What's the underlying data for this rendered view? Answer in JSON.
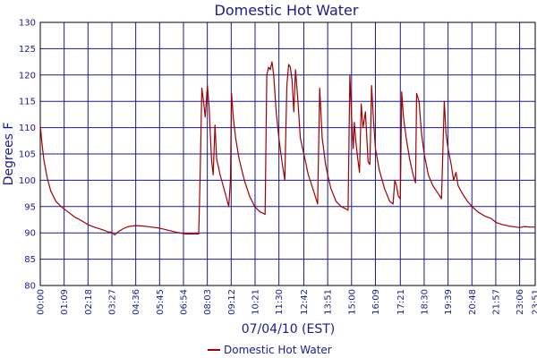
{
  "chart_data": {
    "type": "line",
    "title": "Domestic Hot Water",
    "xlabel": "07/04/10 (EST)",
    "ylabel": "Degrees F",
    "ylim": [
      80,
      130
    ],
    "yticks": [
      80,
      85,
      90,
      95,
      100,
      105,
      110,
      115,
      120,
      125,
      130
    ],
    "xticks": [
      "00:00",
      "01:09",
      "02:18",
      "03:27",
      "04:36",
      "05:45",
      "06:54",
      "08:03",
      "09:12",
      "10:21",
      "11:30",
      "12:42",
      "13:51",
      "15:00",
      "16:09",
      "17:21",
      "18:30",
      "19:39",
      "20:48",
      "21:57",
      "23:06",
      "23:51"
    ],
    "grid": true,
    "legend": "bottom-center",
    "series": [
      {
        "name": "Domestic Hot Water",
        "color": "#a00000",
        "points": [
          [
            "00:00",
            110.5
          ],
          [
            "00:05",
            107
          ],
          [
            "00:10",
            104
          ],
          [
            "00:20",
            100.5
          ],
          [
            "00:30",
            98
          ],
          [
            "00:45",
            96
          ],
          [
            "01:00",
            95
          ],
          [
            "01:20",
            94
          ],
          [
            "01:40",
            93
          ],
          [
            "02:00",
            92.3
          ],
          [
            "02:20",
            91.5
          ],
          [
            "02:40",
            91
          ],
          [
            "03:00",
            90.6
          ],
          [
            "03:15",
            90.2
          ],
          [
            "03:27",
            90.1
          ],
          [
            "03:35",
            89.6
          ],
          [
            "03:45",
            90.2
          ],
          [
            "04:00",
            90.8
          ],
          [
            "04:15",
            91.2
          ],
          [
            "04:36",
            91.4
          ],
          [
            "05:00",
            91.3
          ],
          [
            "05:20",
            91.1
          ],
          [
            "05:45",
            90.9
          ],
          [
            "06:10",
            90.5
          ],
          [
            "06:35",
            90.1
          ],
          [
            "07:00",
            89.8
          ],
          [
            "07:30",
            89.8
          ],
          [
            "07:38",
            89.8
          ],
          [
            "07:42",
            100
          ],
          [
            "07:47",
            117.5
          ],
          [
            "07:52",
            115
          ],
          [
            "07:57",
            112
          ],
          [
            "08:03",
            118
          ],
          [
            "08:08",
            114
          ],
          [
            "08:15",
            104
          ],
          [
            "08:20",
            101
          ],
          [
            "08:25",
            110.5
          ],
          [
            "08:30",
            104
          ],
          [
            "08:40",
            101
          ],
          [
            "08:55",
            97.5
          ],
          [
            "09:05",
            95
          ],
          [
            "09:10",
            100
          ],
          [
            "09:13",
            116.5
          ],
          [
            "09:18",
            112
          ],
          [
            "09:25",
            108
          ],
          [
            "09:35",
            104
          ],
          [
            "09:50",
            100
          ],
          [
            "10:05",
            97
          ],
          [
            "10:20",
            95
          ],
          [
            "10:35",
            94
          ],
          [
            "10:45",
            93.7
          ],
          [
            "10:50",
            93.5
          ],
          [
            "10:55",
            120
          ],
          [
            "11:00",
            121.5
          ],
          [
            "11:05",
            121
          ],
          [
            "11:10",
            122.5
          ],
          [
            "11:15",
            120
          ],
          [
            "11:22",
            113
          ],
          [
            "11:30",
            108
          ],
          [
            "11:40",
            103
          ],
          [
            "11:47",
            100
          ],
          [
            "11:53",
            118
          ],
          [
            "11:58",
            122
          ],
          [
            "12:03",
            121.5
          ],
          [
            "12:08",
            119
          ],
          [
            "12:13",
            113
          ],
          [
            "12:18",
            121
          ],
          [
            "12:25",
            115
          ],
          [
            "12:32",
            108
          ],
          [
            "12:42",
            105
          ],
          [
            "12:55",
            101
          ],
          [
            "13:10",
            98
          ],
          [
            "13:22",
            95.5
          ],
          [
            "13:28",
            117.5
          ],
          [
            "13:35",
            108
          ],
          [
            "13:45",
            103
          ],
          [
            "13:51",
            101
          ],
          [
            "14:00",
            98.5
          ],
          [
            "14:15",
            96
          ],
          [
            "14:30",
            95
          ],
          [
            "14:45",
            94.5
          ],
          [
            "14:50",
            94.3
          ],
          [
            "14:55",
            120
          ],
          [
            "15:00",
            112
          ],
          [
            "15:05",
            106
          ],
          [
            "15:08",
            111
          ],
          [
            "15:13",
            107
          ],
          [
            "15:18",
            104
          ],
          [
            "15:23",
            101.5
          ],
          [
            "15:28",
            114.5
          ],
          [
            "15:33",
            110
          ],
          [
            "15:40",
            113
          ],
          [
            "15:48",
            103.5
          ],
          [
            "15:53",
            103
          ],
          [
            "15:58",
            118
          ],
          [
            "16:03",
            112
          ],
          [
            "16:09",
            106
          ],
          [
            "16:20",
            102
          ],
          [
            "16:35",
            98.5
          ],
          [
            "16:50",
            96
          ],
          [
            "17:00",
            95.5
          ],
          [
            "17:05",
            100
          ],
          [
            "17:10",
            99
          ],
          [
            "17:15",
            97
          ],
          [
            "17:21",
            96.5
          ],
          [
            "17:25",
            116.8
          ],
          [
            "17:30",
            112
          ],
          [
            "17:38",
            108
          ],
          [
            "17:48",
            104
          ],
          [
            "17:58",
            101
          ],
          [
            "18:05",
            99.5
          ],
          [
            "18:08",
            116.5
          ],
          [
            "18:15",
            115
          ],
          [
            "18:22",
            109
          ],
          [
            "18:30",
            105
          ],
          [
            "18:42",
            101
          ],
          [
            "18:55",
            99
          ],
          [
            "19:10",
            97.5
          ],
          [
            "19:20",
            96.5
          ],
          [
            "19:28",
            115
          ],
          [
            "19:33",
            109
          ],
          [
            "19:39",
            106
          ],
          [
            "19:48",
            103
          ],
          [
            "19:55",
            100
          ],
          [
            "20:02",
            101.5
          ],
          [
            "20:08",
            99
          ],
          [
            "20:20",
            97.5
          ],
          [
            "20:35",
            96
          ],
          [
            "20:48",
            95
          ],
          [
            "21:05",
            94
          ],
          [
            "21:25",
            93.2
          ],
          [
            "21:45",
            92.7
          ],
          [
            "21:57",
            92
          ],
          [
            "22:15",
            91.6
          ],
          [
            "22:35",
            91.3
          ],
          [
            "22:55",
            91.1
          ],
          [
            "23:06",
            91
          ],
          [
            "23:20",
            91.2
          ],
          [
            "23:35",
            91.1
          ],
          [
            "23:51",
            91.1
          ]
        ]
      }
    ]
  }
}
